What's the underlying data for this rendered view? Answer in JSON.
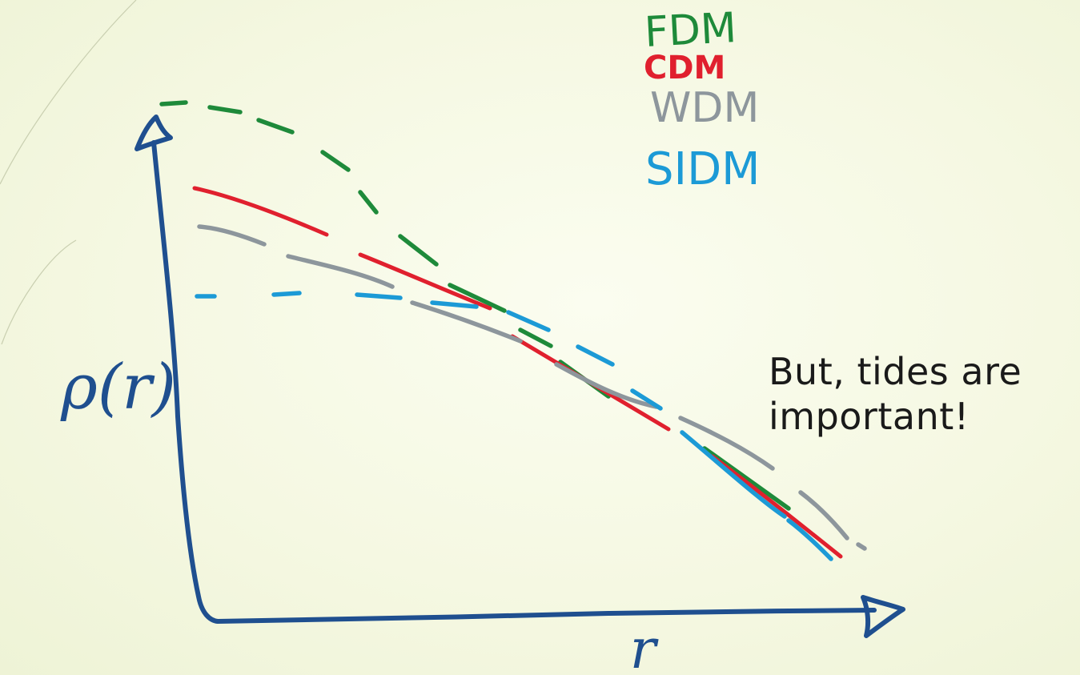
{
  "slide": {
    "note_line1": "But, tides are",
    "note_line2": "important!"
  },
  "sketch": {
    "y_axis_label": "ρ(r)",
    "x_axis_label": "r",
    "legend": [
      {
        "label": "FDM",
        "color": "#1e8a3a"
      },
      {
        "label": "CDM",
        "color": "#e0202e"
      },
      {
        "label": "WDM",
        "color": "#8d969c"
      },
      {
        "label": "SIDM",
        "color": "#1c9ad6"
      }
    ],
    "axis_color": "#1f4f8f"
  }
}
